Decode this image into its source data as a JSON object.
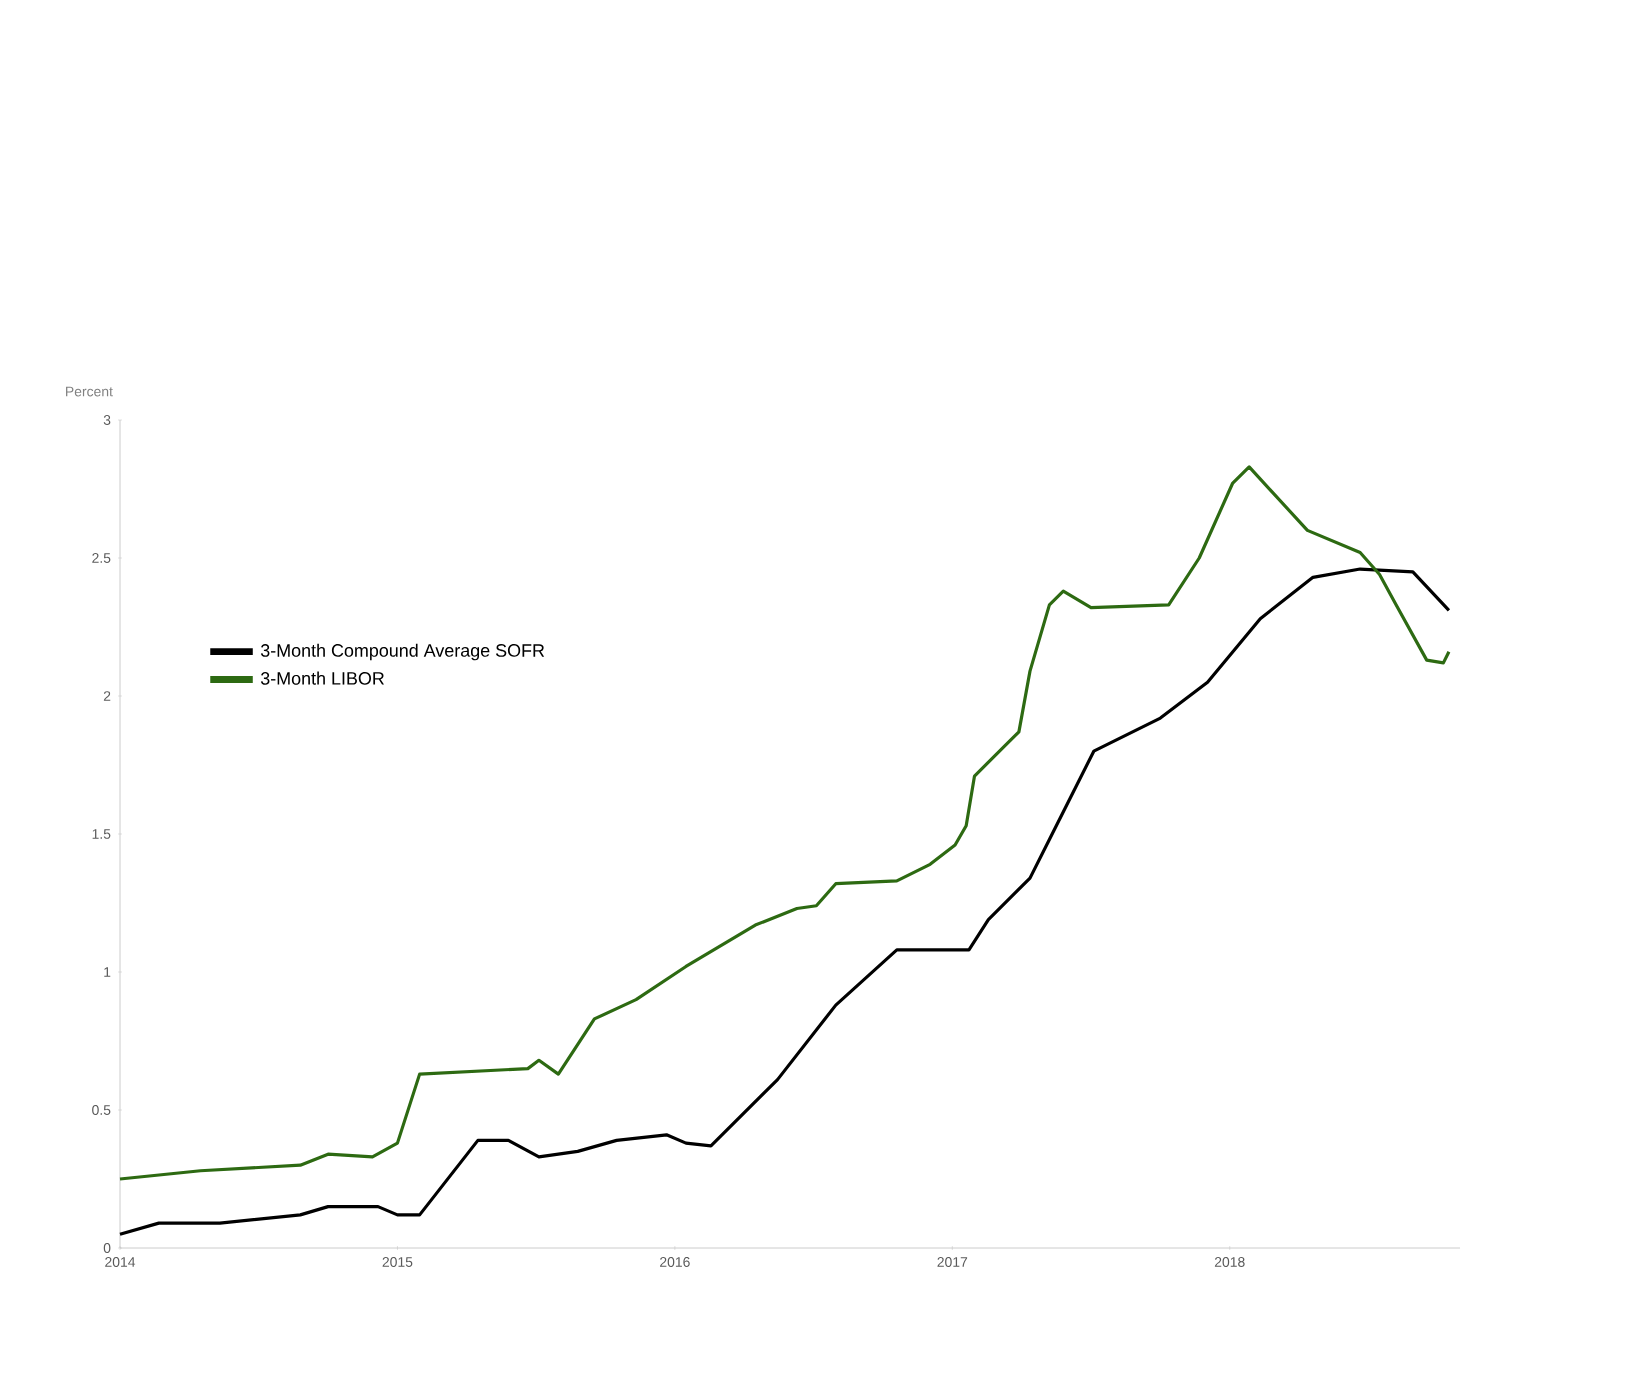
{
  "chart_data": {
    "type": "line",
    "ylabel": "Percent",
    "xlim": [
      2014,
      2018.83
    ],
    "xticks": [
      2014,
      2015,
      2016,
      2017,
      2018
    ],
    "ylim": [
      0,
      3
    ],
    "yticks": [
      0,
      0.5,
      1,
      1.5,
      2,
      2.5,
      3
    ],
    "grid": false,
    "legend": "top left",
    "marker": "none",
    "line_style": "solid",
    "series": [
      {
        "name": "3-Month Compound Average SOFR",
        "color": "#000000",
        "x": [
          2014.0,
          2014.14,
          2014.36,
          2014.65,
          2014.75,
          2014.93,
          2015.0,
          2015.08,
          2015.29,
          2015.4,
          2015.51,
          2015.65,
          2015.79,
          2015.97,
          2016.04,
          2016.13,
          2016.37,
          2016.58,
          2016.8,
          2017.06,
          2017.13,
          2017.28,
          2017.35,
          2017.51,
          2017.75,
          2017.92,
          2018.11,
          2018.3,
          2018.47,
          2018.66,
          2018.79
        ],
        "values": [
          0.05,
          0.09,
          0.09,
          0.12,
          0.15,
          0.15,
          0.12,
          0.12,
          0.39,
          0.39,
          0.33,
          0.35,
          0.39,
          0.41,
          0.38,
          0.37,
          0.61,
          0.88,
          1.08,
          1.08,
          1.19,
          1.34,
          1.48,
          1.8,
          1.92,
          2.05,
          2.28,
          2.43,
          2.46,
          2.45,
          2.31
        ]
      },
      {
        "name": "3-Month LIBOR",
        "color": "#2d6a12",
        "x": [
          2014.0,
          2014.29,
          2014.65,
          2014.75,
          2014.91,
          2015.0,
          2015.08,
          2015.47,
          2015.51,
          2015.58,
          2015.71,
          2015.86,
          2016.04,
          2016.29,
          2016.44,
          2016.51,
          2016.58,
          2016.8,
          2016.92,
          2017.01,
          2017.05,
          2017.08,
          2017.2,
          2017.24,
          2017.28,
          2017.35,
          2017.4,
          2017.5,
          2017.78,
          2017.89,
          2018.01,
          2018.07,
          2018.28,
          2018.47,
          2018.54,
          2018.6,
          2018.71,
          2018.77,
          2018.79
        ],
        "values": [
          0.25,
          0.28,
          0.3,
          0.34,
          0.33,
          0.38,
          0.63,
          0.65,
          0.68,
          0.63,
          0.83,
          0.9,
          1.02,
          1.17,
          1.23,
          1.24,
          1.32,
          1.33,
          1.39,
          1.46,
          1.53,
          1.71,
          1.83,
          1.87,
          2.09,
          2.33,
          2.38,
          2.32,
          2.33,
          2.5,
          2.77,
          2.83,
          2.6,
          2.52,
          2.44,
          2.33,
          2.13,
          2.12,
          2.16
        ]
      }
    ]
  }
}
